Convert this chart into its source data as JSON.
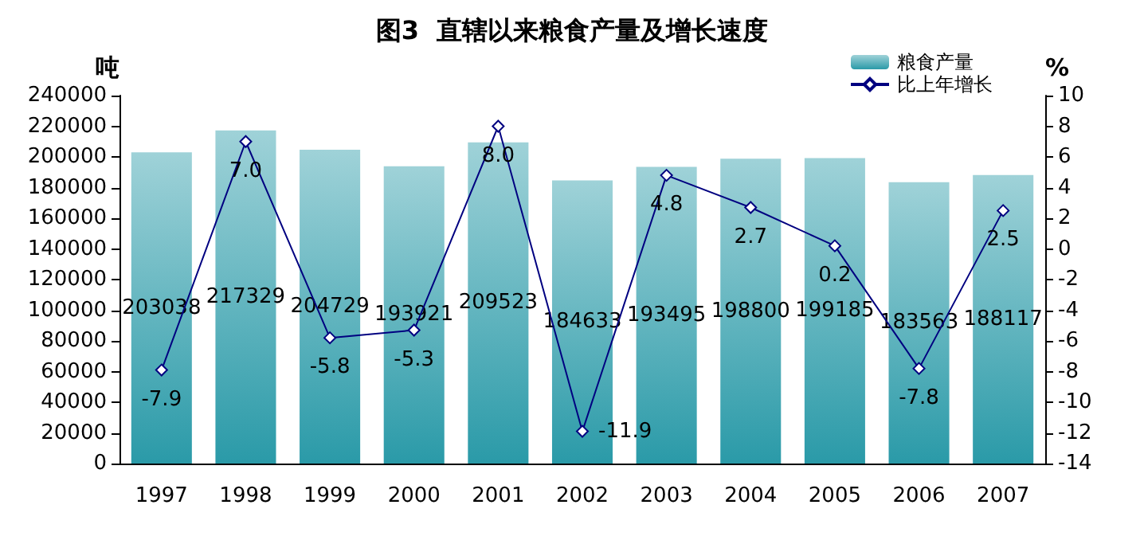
{
  "chart_data": {
    "type": "bar",
    "title": "图3  直辖以来粮食产量及增长速度",
    "ylabel": "吨",
    "y2label": "%",
    "categories": [
      "1997",
      "1998",
      "1999",
      "2000",
      "2001",
      "2002",
      "2003",
      "2004",
      "2005",
      "2006",
      "2007"
    ],
    "series": [
      {
        "name": "粮食产量",
        "color": "#2a9aa8",
        "values": [
          203038,
          217329,
          204729,
          193921,
          209523,
          184633,
          193495,
          198800,
          199185,
          183563,
          188117
        ],
        "value_labels": [
          "203038",
          "217329",
          "204729",
          "193921",
          "209523",
          "184633",
          "193495",
          "198800",
          "199185",
          "183563",
          "188117"
        ]
      },
      {
        "name": "比上年增长",
        "type": "line",
        "axis": "y2",
        "color": "#000080",
        "marker": "diamond",
        "values": [
          -7.9,
          7.0,
          -5.8,
          -5.3,
          8.0,
          -11.9,
          4.8,
          2.7,
          0.2,
          -7.8,
          2.5
        ],
        "value_labels": [
          "-7.9",
          "7.0",
          "-5.8",
          "-5.3",
          "8.0",
          "-11.9",
          "4.8",
          "2.7",
          "0.2",
          "-7.8",
          "2.5"
        ]
      }
    ],
    "ylim": [
      0,
      240000
    ],
    "yticks": [
      0,
      20000,
      40000,
      60000,
      80000,
      100000,
      120000,
      140000,
      160000,
      180000,
      200000,
      220000,
      240000
    ],
    "y2lim": [
      -14,
      10
    ],
    "y2ticks": [
      -14,
      -12,
      -10,
      -8,
      -6,
      -4,
      -2,
      0,
      2,
      4,
      6,
      8,
      10
    ],
    "legend": "top right",
    "grid": false
  }
}
